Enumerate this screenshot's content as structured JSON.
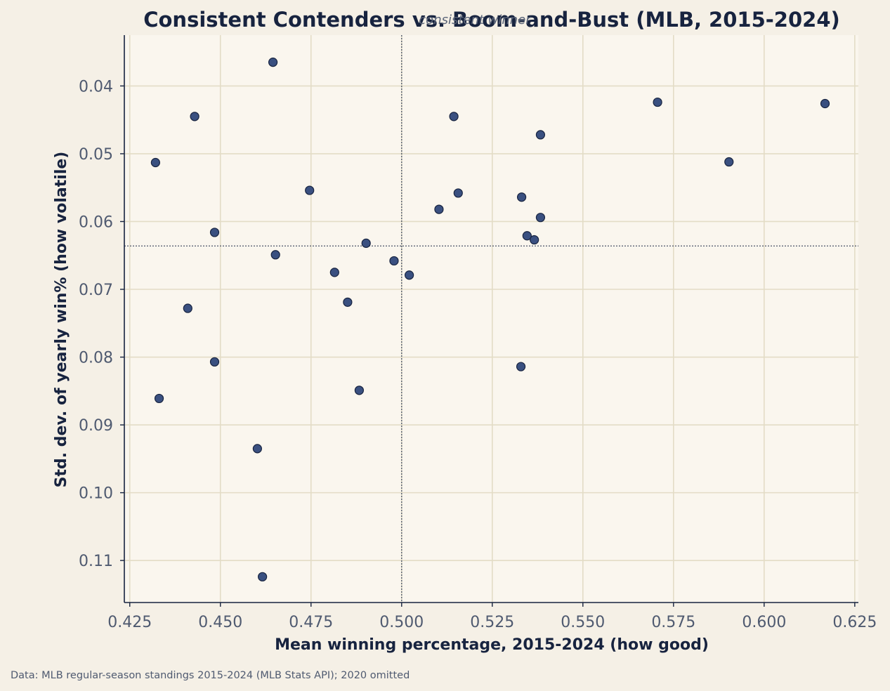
{
  "chart_data": {
    "type": "scatter",
    "title": "Consistent Contenders vs. Boom-and-Bust (MLB, 2015-2024)",
    "overlay_label": "consistent winner",
    "xlabel": "Mean winning percentage, 2015-2024  (how good)",
    "ylabel": "Std. dev. of yearly win%  (how volatile)",
    "source": "Data: MLB regular-season standings 2015-2024 (MLB Stats API); 2020 omitted",
    "xlim": [
      0.4235,
      0.626
    ],
    "ylim": [
      0.0325,
      0.1162
    ],
    "y_inverted": true,
    "grid": true,
    "x_ticks": [
      "0.425",
      "0.450",
      "0.475",
      "0.500",
      "0.525",
      "0.550",
      "0.575",
      "0.600",
      "0.625"
    ],
    "x_tick_values": [
      0.425,
      0.45,
      0.475,
      0.5,
      0.525,
      0.55,
      0.575,
      0.6,
      0.625
    ],
    "y_ticks": [
      "0.04",
      "0.05",
      "0.06",
      "0.07",
      "0.08",
      "0.09",
      "0.10",
      "0.11"
    ],
    "y_tick_values": [
      0.04,
      0.05,
      0.06,
      0.07,
      0.08,
      0.09,
      0.1,
      0.11
    ],
    "ref_x": 0.5,
    "ref_y": 0.0636,
    "colors": {
      "point_fill": "#3a5080",
      "point_stroke": "#17233f",
      "plot_bg": "#faf6ee",
      "grid": "#e3dcc6",
      "spine": "#17233f"
    },
    "points": [
      {
        "x": 0.4645,
        "y": 0.0365
      },
      {
        "x": 0.5706,
        "y": 0.0424
      },
      {
        "x": 0.6168,
        "y": 0.0426
      },
      {
        "x": 0.4429,
        "y": 0.0445
      },
      {
        "x": 0.5144,
        "y": 0.0445
      },
      {
        "x": 0.5383,
        "y": 0.0472
      },
      {
        "x": 0.4321,
        "y": 0.0513
      },
      {
        "x": 0.5903,
        "y": 0.0512
      },
      {
        "x": 0.4746,
        "y": 0.0554
      },
      {
        "x": 0.5156,
        "y": 0.0558
      },
      {
        "x": 0.5331,
        "y": 0.0564
      },
      {
        "x": 0.5103,
        "y": 0.0582
      },
      {
        "x": 0.5383,
        "y": 0.0594
      },
      {
        "x": 0.4484,
        "y": 0.0616
      },
      {
        "x": 0.5346,
        "y": 0.0621
      },
      {
        "x": 0.5366,
        "y": 0.0627
      },
      {
        "x": 0.4902,
        "y": 0.0632
      },
      {
        "x": 0.4652,
        "y": 0.0649
      },
      {
        "x": 0.4979,
        "y": 0.0658
      },
      {
        "x": 0.4815,
        "y": 0.0675
      },
      {
        "x": 0.5021,
        "y": 0.0679
      },
      {
        "x": 0.4851,
        "y": 0.0719
      },
      {
        "x": 0.441,
        "y": 0.0728
      },
      {
        "x": 0.4484,
        "y": 0.0807
      },
      {
        "x": 0.5329,
        "y": 0.0814
      },
      {
        "x": 0.4883,
        "y": 0.0849
      },
      {
        "x": 0.4331,
        "y": 0.0861
      },
      {
        "x": 0.4602,
        "y": 0.0935
      },
      {
        "x": 0.4616,
        "y": 0.1124
      }
    ]
  }
}
